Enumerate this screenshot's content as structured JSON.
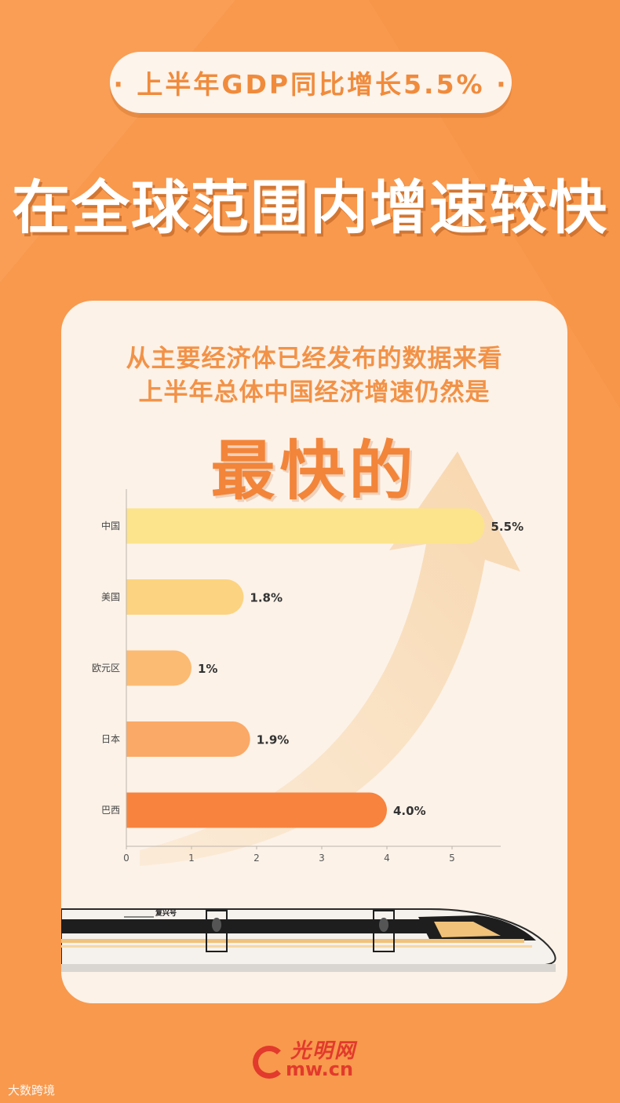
{
  "header": {
    "pill_text": "· 上半年GDP同比增长5.5% ·",
    "headline": "在全球范围内增速较快"
  },
  "card": {
    "intro_line1": "从主要经济体已经发布的数据来看",
    "intro_line2": "上半年总体中国经济增速仍然是",
    "emphasis": "最快的"
  },
  "chart_data": {
    "type": "bar",
    "orientation": "horizontal",
    "categories": [
      "中国",
      "美国",
      "欧元区",
      "日本",
      "巴西"
    ],
    "values": [
      5.5,
      1.8,
      1,
      1.9,
      4.0
    ],
    "value_labels": [
      "5.5%",
      "1.8%",
      "1%",
      "1.9%",
      "4.0%"
    ],
    "bar_colors": [
      "#FCE48C",
      "#FCD380",
      "#FBBB72",
      "#FBA966",
      "#F7833E"
    ],
    "xticks": [
      0,
      1,
      2,
      3,
      4,
      5
    ],
    "xlim": [
      0,
      5.75
    ],
    "grid": false
  },
  "train": {
    "name": "复兴号"
  },
  "footer": {
    "logo_cn": "光明网",
    "logo_en": "mw.cn",
    "watermark": "大数跨境"
  },
  "colors": {
    "background": "#F79548",
    "card": "#FCF2E8",
    "accent": "#F2853A",
    "logo_red": "#E23A2C"
  }
}
